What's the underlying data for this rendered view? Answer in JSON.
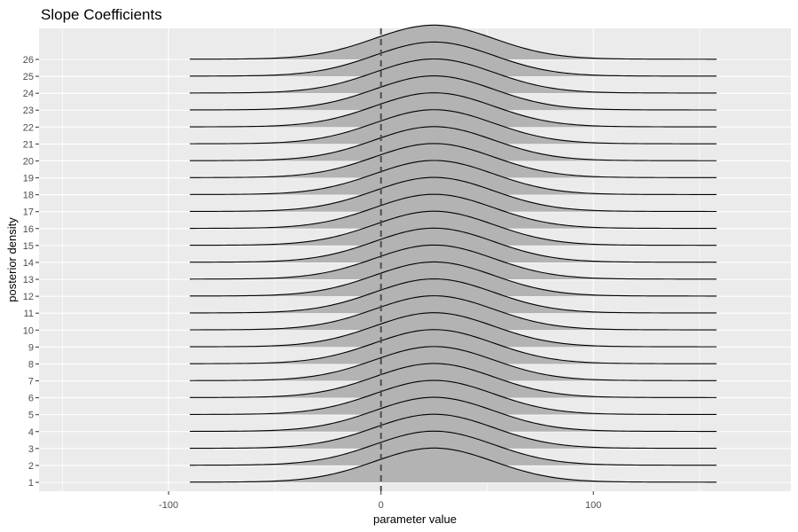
{
  "chart_data": {
    "type": "ridgeline",
    "title": "Slope Coefficients",
    "xlabel": "parameter value",
    "ylabel": "posterior density",
    "x_ticks": [
      -100,
      0,
      100
    ],
    "xlim": [
      -161,
      193
    ],
    "y_categories": [
      "1",
      "2",
      "3",
      "4",
      "5",
      "6",
      "7",
      "8",
      "9",
      "10",
      "11",
      "12",
      "13",
      "14",
      "15",
      "16",
      "17",
      "18",
      "19",
      "20",
      "21",
      "22",
      "23",
      "24",
      "25",
      "26"
    ],
    "density_support": [
      -90,
      158
    ],
    "density_mode": 25,
    "reference_line_x": 0,
    "grid": true,
    "colors": {
      "panel_background": "#ebebeb",
      "gridline": "#ffffff",
      "fill": "#b3b3b3",
      "outline": "#000000",
      "reference_line": "#4d4d4d"
    }
  }
}
